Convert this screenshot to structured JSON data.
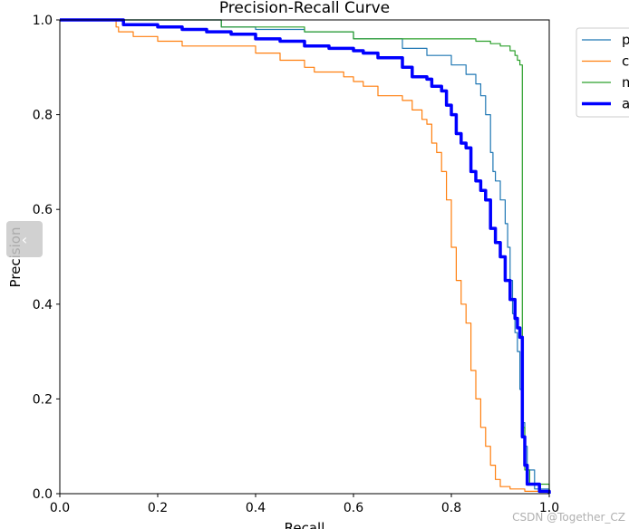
{
  "chart_data": {
    "type": "line",
    "title": "Precision-Recall Curve",
    "xlabel": "Recall",
    "ylabel": "Precision",
    "xlim": [
      0,
      1
    ],
    "ylim": [
      0,
      1
    ],
    "xticks": [
      "0.0",
      "0.2",
      "0.4",
      "0.6",
      "0.8",
      "1.0"
    ],
    "yticks": [
      "0.0",
      "0.2",
      "0.4",
      "0.6",
      "0.8",
      "1.0"
    ],
    "grid": false,
    "legend_position": "outside-top-right",
    "series": [
      {
        "name": "p",
        "color": "#1f77b4",
        "width": 1.2,
        "points": [
          [
            0,
            1
          ],
          [
            0.33,
            1
          ],
          [
            0.33,
            0.985
          ],
          [
            0.4,
            0.98
          ],
          [
            0.5,
            0.975
          ],
          [
            0.6,
            0.96
          ],
          [
            0.7,
            0.94
          ],
          [
            0.75,
            0.925
          ],
          [
            0.8,
            0.905
          ],
          [
            0.83,
            0.885
          ],
          [
            0.85,
            0.865
          ],
          [
            0.86,
            0.84
          ],
          [
            0.87,
            0.8
          ],
          [
            0.88,
            0.75
          ],
          [
            0.88,
            0.72
          ],
          [
            0.885,
            0.68
          ],
          [
            0.89,
            0.66
          ],
          [
            0.9,
            0.62
          ],
          [
            0.91,
            0.57
          ],
          [
            0.915,
            0.52
          ],
          [
            0.92,
            0.45
          ],
          [
            0.925,
            0.38
          ],
          [
            0.93,
            0.34
          ],
          [
            0.935,
            0.3
          ],
          [
            0.94,
            0.22
          ],
          [
            0.945,
            0.15
          ],
          [
            0.95,
            0.1
          ],
          [
            0.955,
            0.05
          ],
          [
            0.97,
            0.01
          ],
          [
            1,
            0
          ]
        ]
      },
      {
        "name": "c",
        "color": "#ff7f0e",
        "width": 1.2,
        "points": [
          [
            0,
            1
          ],
          [
            0.115,
            1
          ],
          [
            0.115,
            0.985
          ],
          [
            0.12,
            0.975
          ],
          [
            0.15,
            0.965
          ],
          [
            0.2,
            0.955
          ],
          [
            0.25,
            0.945
          ],
          [
            0.3,
            0.945
          ],
          [
            0.4,
            0.93
          ],
          [
            0.45,
            0.915
          ],
          [
            0.5,
            0.9
          ],
          [
            0.52,
            0.89
          ],
          [
            0.58,
            0.88
          ],
          [
            0.6,
            0.87
          ],
          [
            0.62,
            0.86
          ],
          [
            0.65,
            0.84
          ],
          [
            0.7,
            0.83
          ],
          [
            0.72,
            0.81
          ],
          [
            0.74,
            0.79
          ],
          [
            0.75,
            0.78
          ],
          [
            0.76,
            0.74
          ],
          [
            0.77,
            0.72
          ],
          [
            0.78,
            0.7
          ],
          [
            0.78,
            0.68
          ],
          [
            0.79,
            0.62
          ],
          [
            0.8,
            0.56
          ],
          [
            0.8,
            0.52
          ],
          [
            0.81,
            0.45
          ],
          [
            0.82,
            0.4
          ],
          [
            0.83,
            0.36
          ],
          [
            0.84,
            0.3
          ],
          [
            0.84,
            0.26
          ],
          [
            0.85,
            0.2
          ],
          [
            0.86,
            0.14
          ],
          [
            0.87,
            0.1
          ],
          [
            0.88,
            0.06
          ],
          [
            0.89,
            0.03
          ],
          [
            0.9,
            0.015
          ],
          [
            0.92,
            0.01
          ],
          [
            0.95,
            0.005
          ],
          [
            1,
            0
          ]
        ]
      },
      {
        "name": "m",
        "color": "#2ca02c",
        "width": 1.2,
        "points": [
          [
            0,
            1
          ],
          [
            0.33,
            1
          ],
          [
            0.33,
            0.985
          ],
          [
            0.5,
            0.975
          ],
          [
            0.6,
            0.96
          ],
          [
            0.7,
            0.96
          ],
          [
            0.8,
            0.96
          ],
          [
            0.85,
            0.955
          ],
          [
            0.88,
            0.95
          ],
          [
            0.9,
            0.945
          ],
          [
            0.92,
            0.935
          ],
          [
            0.93,
            0.925
          ],
          [
            0.935,
            0.915
          ],
          [
            0.94,
            0.905
          ],
          [
            0.945,
            0.9
          ],
          [
            0.945,
            0.5
          ],
          [
            0.945,
            0.14
          ],
          [
            0.95,
            0.05
          ],
          [
            0.96,
            0.02
          ],
          [
            1,
            0
          ]
        ]
      },
      {
        "name": "a",
        "color": "#0000ff",
        "width": 3.5,
        "points": [
          [
            0,
            1
          ],
          [
            0.12,
            1
          ],
          [
            0.13,
            0.99
          ],
          [
            0.2,
            0.985
          ],
          [
            0.25,
            0.98
          ],
          [
            0.3,
            0.975
          ],
          [
            0.35,
            0.97
          ],
          [
            0.4,
            0.96
          ],
          [
            0.45,
            0.955
          ],
          [
            0.5,
            0.945
          ],
          [
            0.55,
            0.94
          ],
          [
            0.6,
            0.935
          ],
          [
            0.62,
            0.93
          ],
          [
            0.65,
            0.92
          ],
          [
            0.7,
            0.9
          ],
          [
            0.72,
            0.88
          ],
          [
            0.75,
            0.875
          ],
          [
            0.76,
            0.86
          ],
          [
            0.78,
            0.85
          ],
          [
            0.79,
            0.82
          ],
          [
            0.8,
            0.8
          ],
          [
            0.81,
            0.76
          ],
          [
            0.82,
            0.74
          ],
          [
            0.83,
            0.73
          ],
          [
            0.84,
            0.68
          ],
          [
            0.85,
            0.66
          ],
          [
            0.86,
            0.64
          ],
          [
            0.87,
            0.62
          ],
          [
            0.88,
            0.56
          ],
          [
            0.89,
            0.53
          ],
          [
            0.9,
            0.5
          ],
          [
            0.91,
            0.45
          ],
          [
            0.92,
            0.41
          ],
          [
            0.93,
            0.37
          ],
          [
            0.935,
            0.35
          ],
          [
            0.94,
            0.33
          ],
          [
            0.945,
            0.12
          ],
          [
            0.95,
            0.06
          ],
          [
            0.955,
            0.02
          ],
          [
            0.98,
            0.005
          ],
          [
            1,
            0
          ]
        ]
      }
    ]
  },
  "watermark": "CSDN @Together_CZ",
  "side_tab_icon": "chevron-left-icon"
}
